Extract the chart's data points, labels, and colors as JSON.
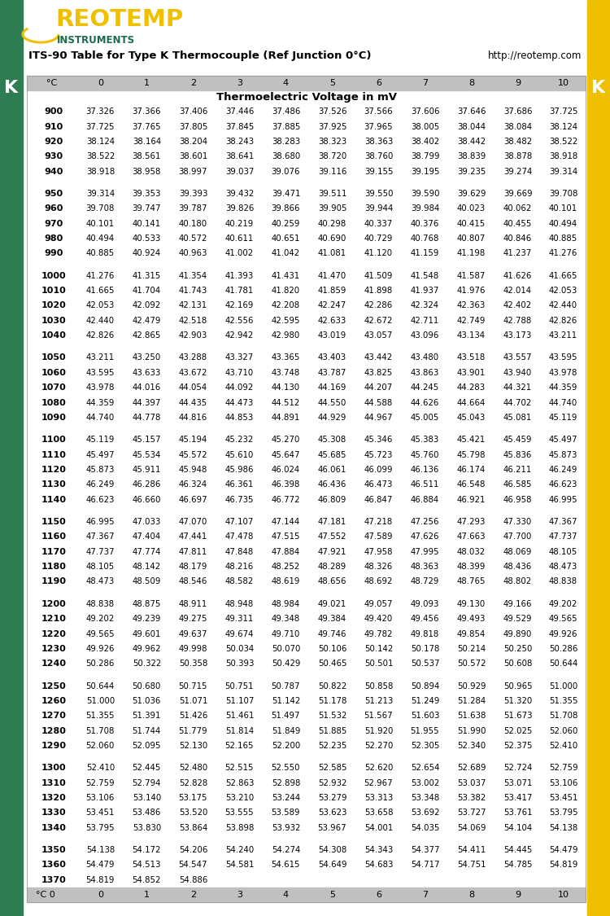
{
  "title": "ITS-90 Table for Type K Thermocouple (Ref Junction 0°C)",
  "website": "http://reotemp.com",
  "subtitle": "Thermoelectric Voltage in mV",
  "col_header": [
    "°C",
    "0",
    "1",
    "2",
    "3",
    "4",
    "5",
    "6",
    "7",
    "8",
    "9",
    "10"
  ],
  "table_data": [
    [
      900,
      37.326,
      37.366,
      37.406,
      37.446,
      37.486,
      37.526,
      37.566,
      37.606,
      37.646,
      37.686,
      37.725
    ],
    [
      910,
      37.725,
      37.765,
      37.805,
      37.845,
      37.885,
      37.925,
      37.965,
      38.005,
      38.044,
      38.084,
      38.124
    ],
    [
      920,
      38.124,
      38.164,
      38.204,
      38.243,
      38.283,
      38.323,
      38.363,
      38.402,
      38.442,
      38.482,
      38.522
    ],
    [
      930,
      38.522,
      38.561,
      38.601,
      38.641,
      38.68,
      38.72,
      38.76,
      38.799,
      38.839,
      38.878,
      38.918
    ],
    [
      940,
      38.918,
      38.958,
      38.997,
      39.037,
      39.076,
      39.116,
      39.155,
      39.195,
      39.235,
      39.274,
      39.314
    ],
    [
      950,
      39.314,
      39.353,
      39.393,
      39.432,
      39.471,
      39.511,
      39.55,
      39.59,
      39.629,
      39.669,
      39.708
    ],
    [
      960,
      39.708,
      39.747,
      39.787,
      39.826,
      39.866,
      39.905,
      39.944,
      39.984,
      40.023,
      40.062,
      40.101
    ],
    [
      970,
      40.101,
      40.141,
      40.18,
      40.219,
      40.259,
      40.298,
      40.337,
      40.376,
      40.415,
      40.455,
      40.494
    ],
    [
      980,
      40.494,
      40.533,
      40.572,
      40.611,
      40.651,
      40.69,
      40.729,
      40.768,
      40.807,
      40.846,
      40.885
    ],
    [
      990,
      40.885,
      40.924,
      40.963,
      41.002,
      41.042,
      41.081,
      41.12,
      41.159,
      41.198,
      41.237,
      41.276
    ],
    [
      1000,
      41.276,
      41.315,
      41.354,
      41.393,
      41.431,
      41.47,
      41.509,
      41.548,
      41.587,
      41.626,
      41.665
    ],
    [
      1010,
      41.665,
      41.704,
      41.743,
      41.781,
      41.82,
      41.859,
      41.898,
      41.937,
      41.976,
      42.014,
      42.053
    ],
    [
      1020,
      42.053,
      42.092,
      42.131,
      42.169,
      42.208,
      42.247,
      42.286,
      42.324,
      42.363,
      42.402,
      42.44
    ],
    [
      1030,
      42.44,
      42.479,
      42.518,
      42.556,
      42.595,
      42.633,
      42.672,
      42.711,
      42.749,
      42.788,
      42.826
    ],
    [
      1040,
      42.826,
      42.865,
      42.903,
      42.942,
      42.98,
      43.019,
      43.057,
      43.096,
      43.134,
      43.173,
      43.211
    ],
    [
      1050,
      43.211,
      43.25,
      43.288,
      43.327,
      43.365,
      43.403,
      43.442,
      43.48,
      43.518,
      43.557,
      43.595
    ],
    [
      1060,
      43.595,
      43.633,
      43.672,
      43.71,
      43.748,
      43.787,
      43.825,
      43.863,
      43.901,
      43.94,
      43.978
    ],
    [
      1070,
      43.978,
      44.016,
      44.054,
      44.092,
      44.13,
      44.169,
      44.207,
      44.245,
      44.283,
      44.321,
      44.359
    ],
    [
      1080,
      44.359,
      44.397,
      44.435,
      44.473,
      44.512,
      44.55,
      44.588,
      44.626,
      44.664,
      44.702,
      44.74
    ],
    [
      1090,
      44.74,
      44.778,
      44.816,
      44.853,
      44.891,
      44.929,
      44.967,
      45.005,
      45.043,
      45.081,
      45.119
    ],
    [
      1100,
      45.119,
      45.157,
      45.194,
      45.232,
      45.27,
      45.308,
      45.346,
      45.383,
      45.421,
      45.459,
      45.497
    ],
    [
      1110,
      45.497,
      45.534,
      45.572,
      45.61,
      45.647,
      45.685,
      45.723,
      45.76,
      45.798,
      45.836,
      45.873
    ],
    [
      1120,
      45.873,
      45.911,
      45.948,
      45.986,
      46.024,
      46.061,
      46.099,
      46.136,
      46.174,
      46.211,
      46.249
    ],
    [
      1130,
      46.249,
      46.286,
      46.324,
      46.361,
      46.398,
      46.436,
      46.473,
      46.511,
      46.548,
      46.585,
      46.623
    ],
    [
      1140,
      46.623,
      46.66,
      46.697,
      46.735,
      46.772,
      46.809,
      46.847,
      46.884,
      46.921,
      46.958,
      46.995
    ],
    [
      1150,
      46.995,
      47.033,
      47.07,
      47.107,
      47.144,
      47.181,
      47.218,
      47.256,
      47.293,
      47.33,
      47.367
    ],
    [
      1160,
      47.367,
      47.404,
      47.441,
      47.478,
      47.515,
      47.552,
      47.589,
      47.626,
      47.663,
      47.7,
      47.737
    ],
    [
      1170,
      47.737,
      47.774,
      47.811,
      47.848,
      47.884,
      47.921,
      47.958,
      47.995,
      48.032,
      48.069,
      48.105
    ],
    [
      1180,
      48.105,
      48.142,
      48.179,
      48.216,
      48.252,
      48.289,
      48.326,
      48.363,
      48.399,
      48.436,
      48.473
    ],
    [
      1190,
      48.473,
      48.509,
      48.546,
      48.582,
      48.619,
      48.656,
      48.692,
      48.729,
      48.765,
      48.802,
      48.838
    ],
    [
      1200,
      48.838,
      48.875,
      48.911,
      48.948,
      48.984,
      49.021,
      49.057,
      49.093,
      49.13,
      49.166,
      49.202
    ],
    [
      1210,
      49.202,
      49.239,
      49.275,
      49.311,
      49.348,
      49.384,
      49.42,
      49.456,
      49.493,
      49.529,
      49.565
    ],
    [
      1220,
      49.565,
      49.601,
      49.637,
      49.674,
      49.71,
      49.746,
      49.782,
      49.818,
      49.854,
      49.89,
      49.926
    ],
    [
      1230,
      49.926,
      49.962,
      49.998,
      50.034,
      50.07,
      50.106,
      50.142,
      50.178,
      50.214,
      50.25,
      50.286
    ],
    [
      1240,
      50.286,
      50.322,
      50.358,
      50.393,
      50.429,
      50.465,
      50.501,
      50.537,
      50.572,
      50.608,
      50.644
    ],
    [
      1250,
      50.644,
      50.68,
      50.715,
      50.751,
      50.787,
      50.822,
      50.858,
      50.894,
      50.929,
      50.965,
      51.0
    ],
    [
      1260,
      51.0,
      51.036,
      51.071,
      51.107,
      51.142,
      51.178,
      51.213,
      51.249,
      51.284,
      51.32,
      51.355
    ],
    [
      1270,
      51.355,
      51.391,
      51.426,
      51.461,
      51.497,
      51.532,
      51.567,
      51.603,
      51.638,
      51.673,
      51.708
    ],
    [
      1280,
      51.708,
      51.744,
      51.779,
      51.814,
      51.849,
      51.885,
      51.92,
      51.955,
      51.99,
      52.025,
      52.06
    ],
    [
      1290,
      52.06,
      52.095,
      52.13,
      52.165,
      52.2,
      52.235,
      52.27,
      52.305,
      52.34,
      52.375,
      52.41
    ],
    [
      1300,
      52.41,
      52.445,
      52.48,
      52.515,
      52.55,
      52.585,
      52.62,
      52.654,
      52.689,
      52.724,
      52.759
    ],
    [
      1310,
      52.759,
      52.794,
      52.828,
      52.863,
      52.898,
      52.932,
      52.967,
      53.002,
      53.037,
      53.071,
      53.106
    ],
    [
      1320,
      53.106,
      53.14,
      53.175,
      53.21,
      53.244,
      53.279,
      53.313,
      53.348,
      53.382,
      53.417,
      53.451
    ],
    [
      1330,
      53.451,
      53.486,
      53.52,
      53.555,
      53.589,
      53.623,
      53.658,
      53.692,
      53.727,
      53.761,
      53.795
    ],
    [
      1340,
      53.795,
      53.83,
      53.864,
      53.898,
      53.932,
      53.967,
      54.001,
      54.035,
      54.069,
      54.104,
      54.138
    ],
    [
      1350,
      54.138,
      54.172,
      54.206,
      54.24,
      54.274,
      54.308,
      54.343,
      54.377,
      54.411,
      54.445,
      54.479
    ],
    [
      1360,
      54.479,
      54.513,
      54.547,
      54.581,
      54.615,
      54.649,
      54.683,
      54.717,
      54.751,
      54.785,
      54.819
    ],
    [
      1370,
      54.819,
      54.852,
      54.886,
      null,
      null,
      null,
      null,
      null,
      null,
      null,
      null
    ]
  ],
  "bg_color": "#ffffff",
  "header_bg": "#c0c0c0",
  "sidebar_green": "#2e7d52",
  "sidebar_yellow": "#f0c000",
  "logo_yellow": "#f0c000",
  "logo_green": "#1a6b4a"
}
